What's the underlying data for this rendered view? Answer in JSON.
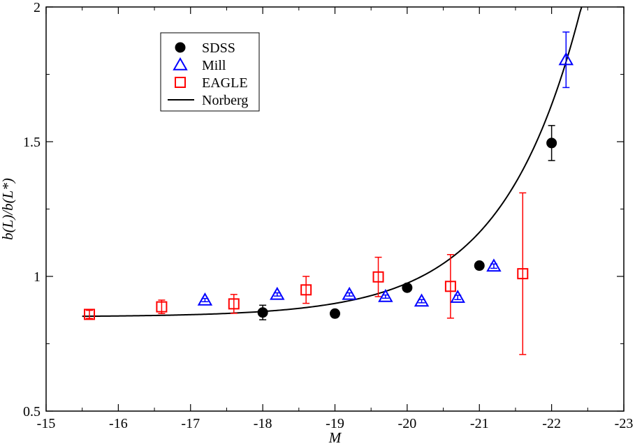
{
  "chart_data": {
    "type": "scatter",
    "title": "",
    "xlabel": "M",
    "ylabel": "b(L)/b(L*)",
    "xlim": [
      -15,
      -23
    ],
    "ylim": [
      0.5,
      2
    ],
    "x_ticks": [
      -15,
      -16,
      -17,
      -18,
      -19,
      -20,
      -21,
      -22,
      -23
    ],
    "y_ticks": [
      0.5,
      1,
      1.5,
      2
    ],
    "x_tick_labels": [
      "-15",
      "-16",
      "-17",
      "-18",
      "-19",
      "-20",
      "-21",
      "-22",
      "-23"
    ],
    "y_tick_labels": [
      "0.5",
      "1",
      "1.5",
      "2"
    ],
    "legend_position": "top-left",
    "series": [
      {
        "name": "SDSS",
        "marker": "circle-filled",
        "color": "#000000",
        "points": [
          {
            "x": -18.0,
            "y": 0.866,
            "err": 0.027
          },
          {
            "x": -19.0,
            "y": 0.862,
            "err": 0.012
          },
          {
            "x": -20.0,
            "y": 0.958,
            "err": 0.01
          },
          {
            "x": -21.0,
            "y": 1.04,
            "err": 0.01
          },
          {
            "x": -22.0,
            "y": 1.495,
            "err": 0.065
          }
        ]
      },
      {
        "name": "Mill",
        "marker": "triangle-open",
        "color": "#0000ff",
        "points": [
          {
            "x": -17.2,
            "y": 0.912,
            "err": 0.006
          },
          {
            "x": -18.2,
            "y": 0.933,
            "err": 0.006
          },
          {
            "x": -19.2,
            "y": 0.933,
            "err": 0.006
          },
          {
            "x": -19.7,
            "y": 0.925,
            "err": 0.006
          },
          {
            "x": -20.2,
            "y": 0.908,
            "err": 0.006
          },
          {
            "x": -20.7,
            "y": 0.922,
            "err": 0.008
          },
          {
            "x": -21.2,
            "y": 1.038,
            "err": 0.008
          },
          {
            "x": -22.2,
            "y": 1.804,
            "err": 0.103
          }
        ]
      },
      {
        "name": "EAGLE",
        "marker": "square-open",
        "color": "#ff0000",
        "points": [
          {
            "x": -15.6,
            "y": 0.859,
            "err": 0.015
          },
          {
            "x": -16.6,
            "y": 0.887,
            "err": 0.025
          },
          {
            "x": -17.6,
            "y": 0.898,
            "err": 0.035
          },
          {
            "x": -18.6,
            "y": 0.95,
            "err": 0.05
          },
          {
            "x": -19.6,
            "y": 0.998,
            "err": 0.073
          },
          {
            "x": -20.6,
            "y": 0.963,
            "err": 0.118
          },
          {
            "x": -21.6,
            "y": 1.01,
            "err": 0.3
          }
        ]
      },
      {
        "name": "Norberg",
        "marker": "line",
        "color": "#000000",
        "model": {
          "a": 0.85,
          "b": 0.15,
          "xstar": -20.2
        },
        "x_range": [
          -15.5,
          -22.63
        ]
      }
    ]
  }
}
